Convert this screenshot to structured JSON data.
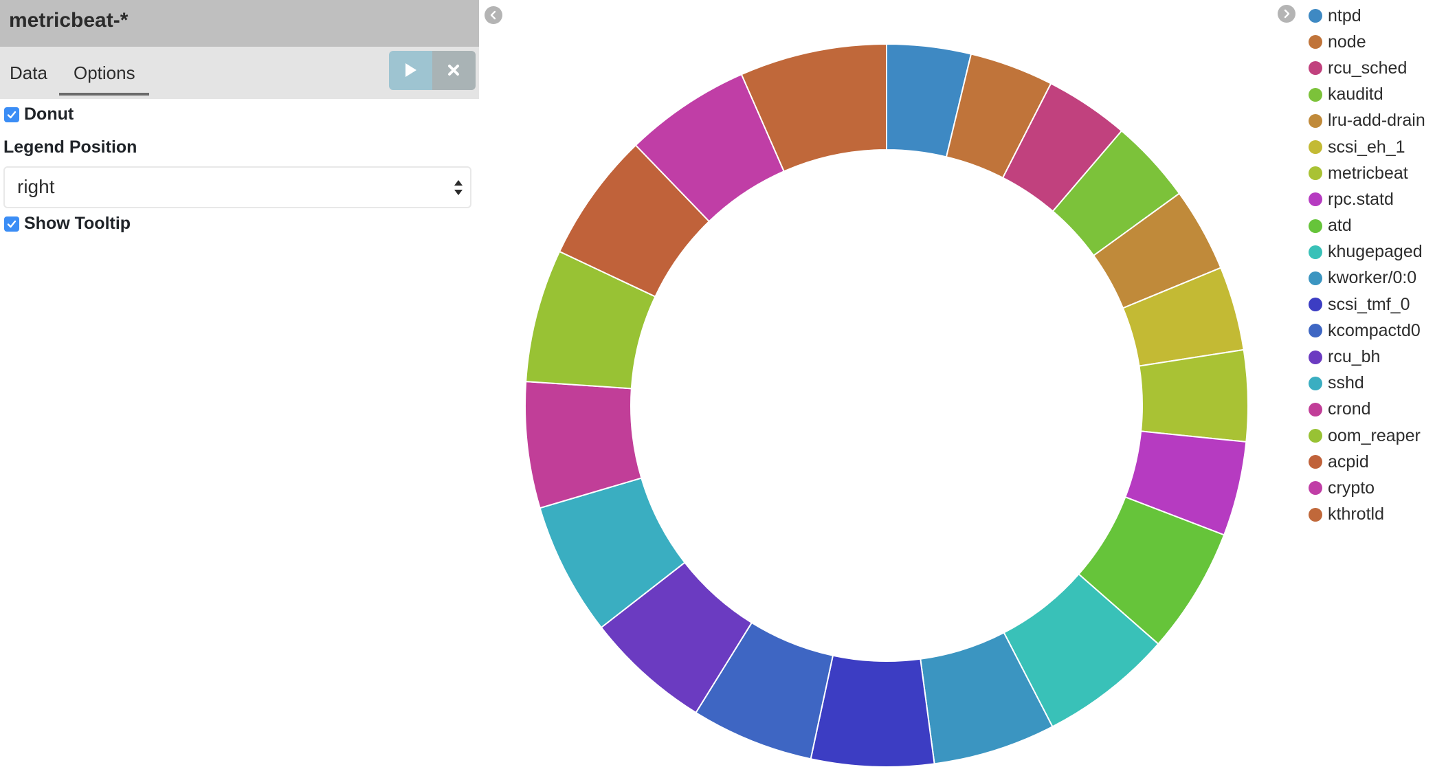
{
  "sidebar": {
    "index_pattern": "metricbeat-*",
    "tabs": [
      {
        "label": "Data"
      },
      {
        "label": "Options"
      }
    ],
    "active_tab": "Options",
    "options": {
      "donut_label": "Donut",
      "donut_checked": true,
      "legend_position_label": "Legend Position",
      "legend_position_value": "right",
      "show_tooltip_label": "Show Tooltip",
      "show_tooltip_checked": true
    }
  },
  "icons": {
    "apply": "play-icon",
    "discard": "close-icon",
    "collapse_left": "chevron-left-icon",
    "collapse_right": "chevron-right-icon"
  },
  "chart_data": {
    "type": "pie",
    "donut": true,
    "legend_position": "right",
    "categories": [
      "ntpd",
      "node",
      "rcu_sched",
      "kauditd",
      "lru-add-drain",
      "scsi_eh_1",
      "metricbeat",
      "rpc.statd",
      "atd",
      "khugepaged",
      "kworker/0:0",
      "scsi_tmf_0",
      "kcompactd0",
      "rcu_bh",
      "sshd",
      "crond",
      "oom_reaper",
      "acpid",
      "crypto",
      "kthrotld"
    ],
    "colors": [
      "#3e89c3",
      "#c0743a",
      "#c1417e",
      "#7cc23a",
      "#c08a3a",
      "#c3ba34",
      "#a9c234",
      "#b63bc1",
      "#66c43a",
      "#39c1b8",
      "#3b95c1",
      "#3c3dc3",
      "#3e66c3",
      "#6b3bc1",
      "#3aaec1",
      "#c13e98",
      "#98c234",
      "#c0623a",
      "#c03ea6",
      "#c0683a"
    ],
    "values": [
      24,
      24,
      24,
      24,
      24,
      24,
      26,
      27,
      36,
      38,
      35,
      35,
      35,
      36,
      38,
      36,
      38,
      37,
      36,
      42
    ]
  }
}
